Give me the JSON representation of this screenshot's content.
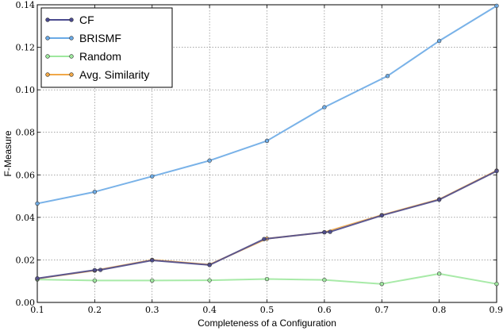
{
  "chart_data": {
    "type": "line",
    "xlabel": "Completeness of a Configuration",
    "ylabel": "F-Measure",
    "xlim": [
      0.1,
      0.9
    ],
    "ylim": [
      0.0,
      0.14
    ],
    "xticks": [
      "0.1",
      "0.2",
      "0.3",
      "0.4",
      "0.5",
      "0.6",
      "0.7",
      "0.8",
      "0.9"
    ],
    "yticks": [
      "0.00",
      "0.02",
      "0.04",
      "0.06",
      "0.08",
      "0.10",
      "0.12",
      "0.14"
    ],
    "grid": true,
    "legend_position": "top-left",
    "series": [
      {
        "name": "CF",
        "color": "#4b4b8f",
        "x": [
          0.1,
          0.2,
          0.21,
          0.3,
          0.4,
          0.495,
          0.6,
          0.61,
          0.7,
          0.8,
          0.9
        ],
        "y": [
          0.0113,
          0.0152,
          0.0153,
          0.0198,
          0.0176,
          0.0298,
          0.033,
          0.0332,
          0.0409,
          0.0483,
          0.0618
        ]
      },
      {
        "name": "BRISMF",
        "color": "#6aaae6",
        "x": [
          0.1,
          0.2,
          0.3,
          0.4,
          0.5,
          0.6,
          0.71,
          0.8,
          0.9
        ],
        "y": [
          0.0465,
          0.052,
          0.0593,
          0.0667,
          0.076,
          0.0918,
          0.1065,
          0.123,
          0.1395
        ]
      },
      {
        "name": "Random",
        "color": "#9ee89e",
        "x": [
          0.1,
          0.2,
          0.3,
          0.4,
          0.5,
          0.6,
          0.7,
          0.8,
          0.9
        ],
        "y": [
          0.0108,
          0.0103,
          0.0103,
          0.0104,
          0.011,
          0.0106,
          0.0087,
          0.0135,
          0.0087
        ]
      },
      {
        "name": "Avg. Similarity",
        "color": "#f0a848",
        "x": [
          0.1,
          0.2,
          0.3,
          0.4,
          0.5,
          0.6,
          0.7,
          0.8,
          0.9
        ],
        "y": [
          0.0112,
          0.015,
          0.02,
          0.0178,
          0.03,
          0.033,
          0.0411,
          0.0485,
          0.062
        ]
      }
    ]
  }
}
